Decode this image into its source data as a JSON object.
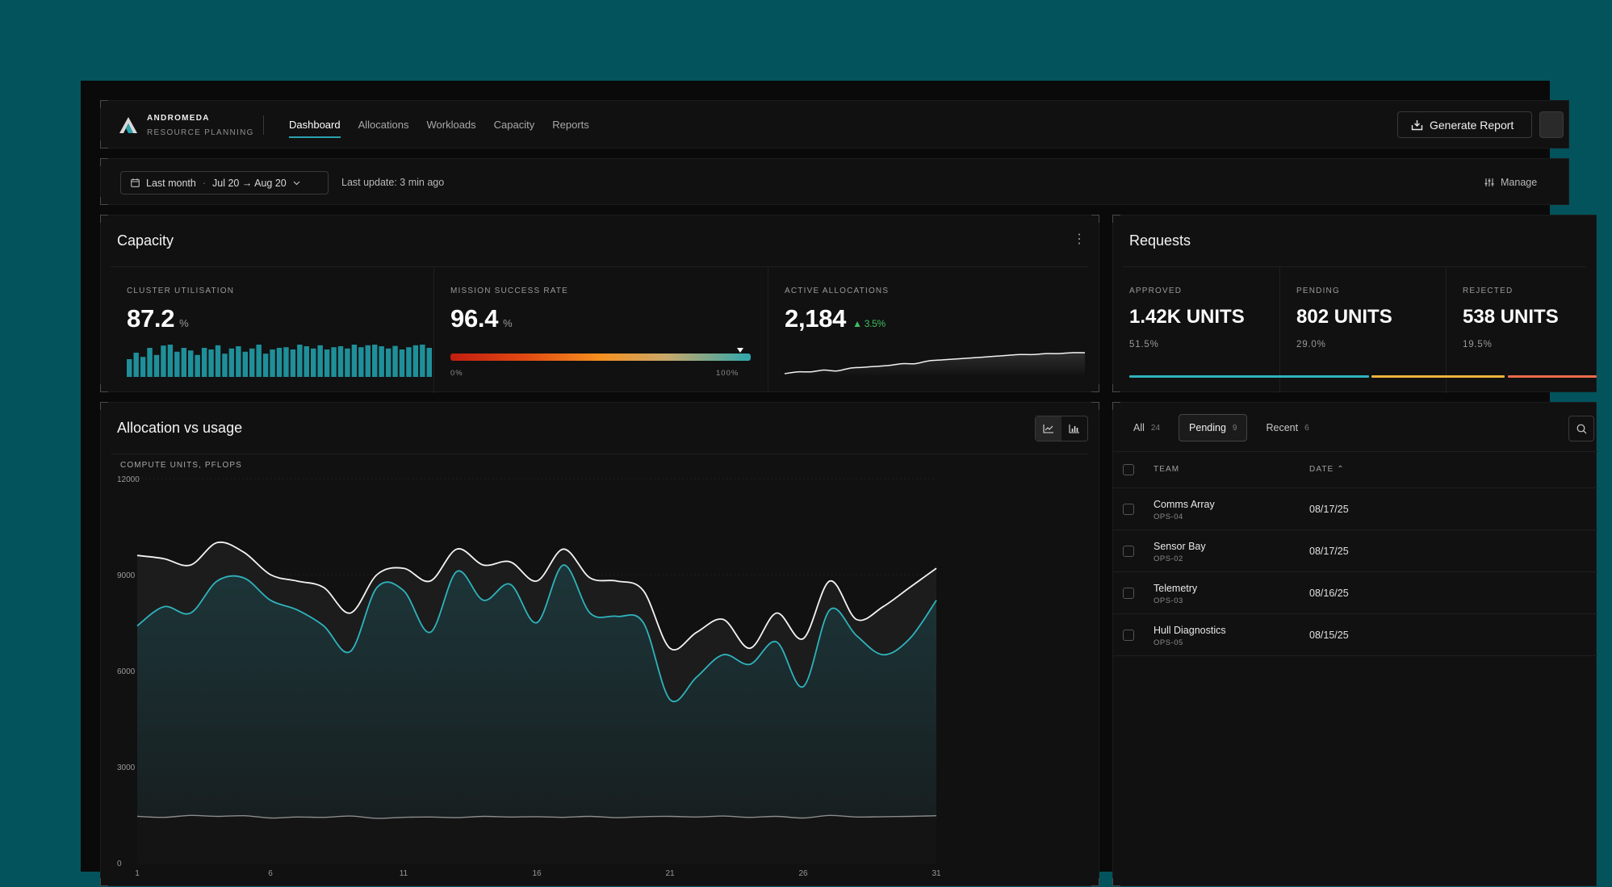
{
  "brand": {
    "name": "ANDROMEDA",
    "subtitle": "RESOURCE PLANNING"
  },
  "nav": [
    {
      "label": "Dashboard",
      "active": true
    },
    {
      "label": "Allocations",
      "active": false
    },
    {
      "label": "Workloads",
      "active": false
    },
    {
      "label": "Capacity",
      "active": false
    },
    {
      "label": "Reports",
      "active": false
    }
  ],
  "header": {
    "generate_report_label": "Generate Report"
  },
  "filters": {
    "range_label": "Last month",
    "range_dates": "Jul 20 → Aug 20",
    "last_update": "Last update: 3 min ago",
    "manage_label": "Manage"
  },
  "capacity": {
    "title": "Capacity",
    "cluster_utilisation": {
      "label": "CLUSTER UTILISATION",
      "value": "87.2",
      "unit": "%",
      "bars": [
        0.55,
        0.75,
        0.62,
        0.9,
        0.68,
        0.97,
        1.0,
        0.78,
        0.9,
        0.82,
        0.68,
        0.9,
        0.85,
        0.98,
        0.72,
        0.88,
        0.95,
        0.78,
        0.88,
        1.0,
        0.72,
        0.85,
        0.9,
        0.92,
        0.85,
        1.0,
        0.95,
        0.88,
        0.98,
        0.85,
        0.92,
        0.95,
        0.88,
        1.0,
        0.92,
        0.98,
        1.0,
        0.95,
        0.88,
        0.96,
        0.85,
        0.92,
        0.98,
        1.0,
        0.9
      ]
    },
    "mission_success_rate": {
      "label": "MISSION SUCCESS RATE",
      "value": "96.4",
      "unit": "%",
      "gauge_fraction": 0.964,
      "min_label": "0%",
      "max_label": "100%"
    },
    "active_allocations": {
      "label": "ACTIVE ALLOCATIONS",
      "value": "2,184",
      "delta": "▲ 3.5%",
      "trend": [
        10,
        12,
        12,
        14,
        13,
        16,
        17,
        18,
        19,
        21,
        21,
        24,
        25,
        26,
        27,
        28,
        29,
        30,
        31,
        31,
        32,
        32,
        33,
        33
      ]
    }
  },
  "requests": {
    "title": "Requests",
    "items": [
      {
        "label": "APPROVED",
        "value": "1.42K UNITS",
        "pct": "51.5%",
        "color": "#2fb3bd",
        "share": 0.515
      },
      {
        "label": "PENDING",
        "value": "802 UNITS",
        "pct": "29.0%",
        "color": "#f0b43a",
        "share": 0.29
      },
      {
        "label": "REJECTED",
        "value": "538 UNITS",
        "pct": "19.5%",
        "color": "#ef6b4a",
        "share": 0.195
      }
    ]
  },
  "allocation": {
    "title": "Allocation vs usage",
    "ylabel": "COMPUTE UNITS, PFLOPS"
  },
  "chart_data": {
    "type": "line",
    "title": "Allocation vs usage",
    "ylabel": "COMPUTE UNITS, PFLOPS",
    "ylim": [
      0,
      12000
    ],
    "yticks": [
      0,
      3000,
      6000,
      9000,
      12000
    ],
    "xticks": [
      1,
      6,
      11,
      16,
      21,
      26,
      31
    ],
    "x": [
      1,
      2,
      3,
      4,
      5,
      6,
      7,
      8,
      9,
      10,
      11,
      12,
      13,
      14,
      15,
      16,
      17,
      18,
      19,
      20,
      21,
      22,
      23,
      24,
      25,
      26,
      27,
      28,
      29,
      30,
      31
    ],
    "series": [
      {
        "values": [
          9600,
          9500,
          9300,
          10000,
          9700,
          9000,
          8800,
          8600,
          7800,
          9000,
          9200,
          8800,
          9800,
          9300,
          9400,
          8800,
          9800,
          8900,
          8800,
          8500,
          6700,
          7200,
          7600,
          6700,
          7800,
          7000,
          8800,
          7600,
          8000,
          8600,
          9200
        ]
      },
      {
        "values": [
          7400,
          8000,
          7800,
          8800,
          8900,
          8200,
          7900,
          7400,
          6600,
          8600,
          8500,
          7200,
          9100,
          8200,
          8700,
          7500,
          9300,
          7800,
          7700,
          7500,
          5100,
          5800,
          6500,
          6200,
          6900,
          5500,
          7900,
          7100,
          6500,
          7000,
          8200
        ]
      },
      {
        "values": [
          1450,
          1420,
          1480,
          1450,
          1470,
          1400,
          1430,
          1420,
          1460,
          1390,
          1420,
          1430,
          1410,
          1450,
          1430,
          1440,
          1420,
          1450,
          1410,
          1440,
          1450,
          1430,
          1460,
          1420,
          1450,
          1400,
          1480,
          1430,
          1440,
          1450,
          1470
        ]
      }
    ],
    "grid": true
  },
  "table": {
    "tabs": [
      {
        "label": "All",
        "count": "24",
        "active": false
      },
      {
        "label": "Pending",
        "count": "9",
        "active": true
      },
      {
        "label": "Recent",
        "count": "6",
        "active": false
      }
    ],
    "columns": {
      "team": "TEAM",
      "date": "DATE ⌃"
    },
    "rows": [
      {
        "team": "Comms Array",
        "code": "OPS-04",
        "date": "08/17/25"
      },
      {
        "team": "Sensor Bay",
        "code": "OPS-02",
        "date": "08/17/25"
      },
      {
        "team": "Telemetry",
        "code": "OPS-03",
        "date": "08/16/25"
      },
      {
        "team": "Hull Diagnostics",
        "code": "OPS-05",
        "date": "08/15/25"
      }
    ]
  }
}
